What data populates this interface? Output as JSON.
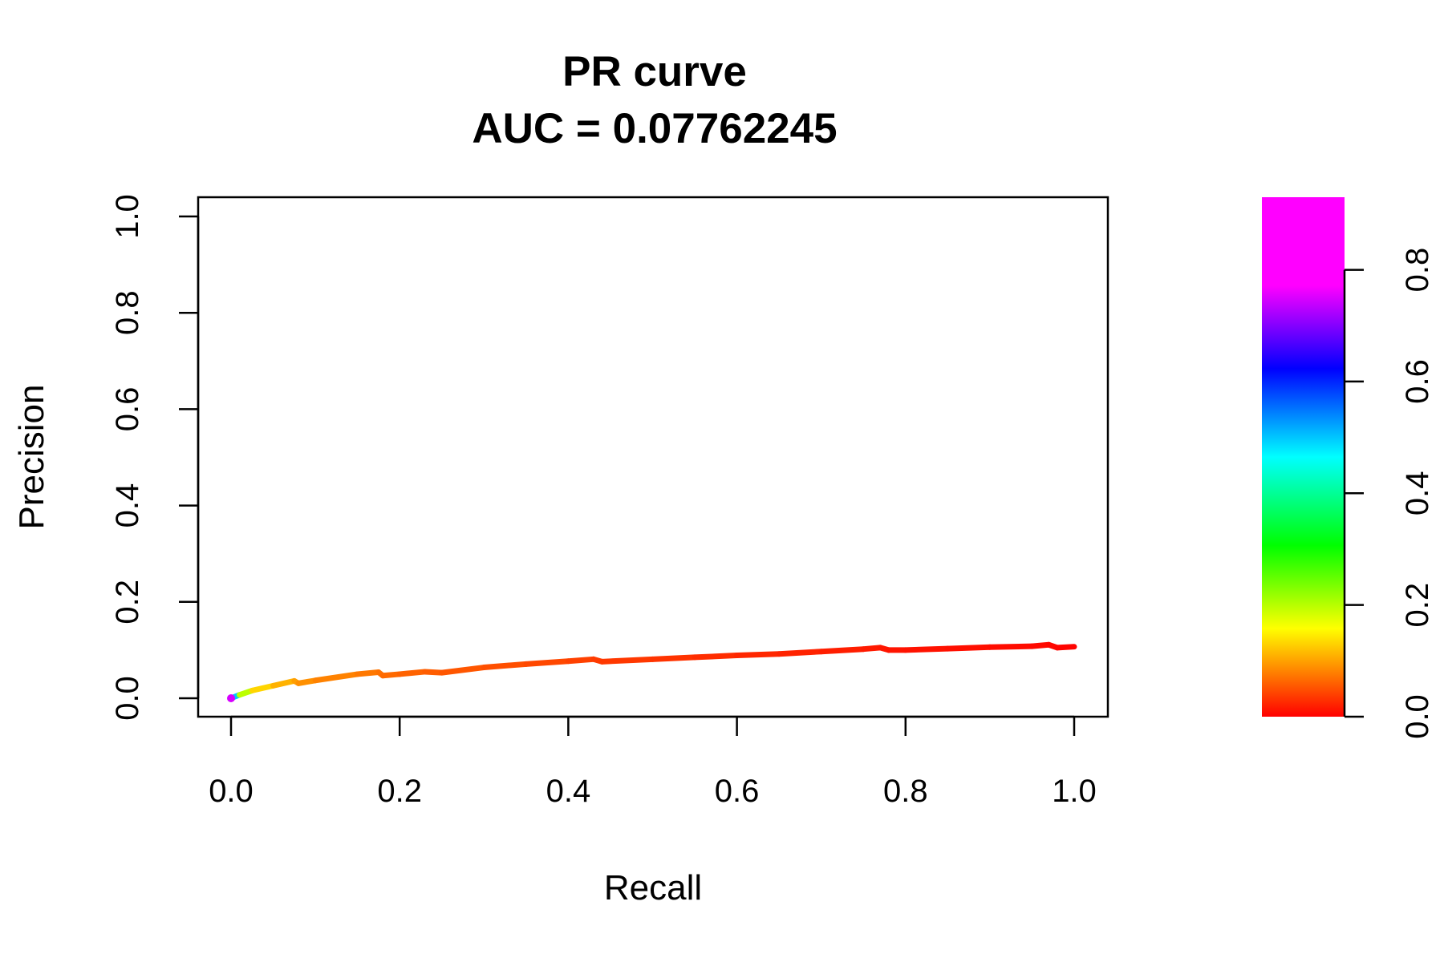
{
  "chart_data": {
    "type": "line",
    "title": "PR curve",
    "subtitle": "AUC = 0.07762245",
    "xlabel": "Recall",
    "ylabel": "Precision",
    "xlim": [
      0.0,
      1.0
    ],
    "ylim": [
      0.0,
      1.0
    ],
    "x_ticks": [
      "0.0",
      "0.2",
      "0.4",
      "0.6",
      "0.8",
      "1.0"
    ],
    "y_ticks": [
      "0.0",
      "0.2",
      "0.4",
      "0.6",
      "0.8",
      "1.0"
    ],
    "grid": false,
    "legend": "none",
    "curve": {
      "recall": [
        0.0,
        0.01,
        0.025,
        0.05,
        0.075,
        0.08,
        0.1,
        0.15,
        0.175,
        0.18,
        0.2,
        0.23,
        0.25,
        0.3,
        0.35,
        0.4,
        0.43,
        0.44,
        0.5,
        0.55,
        0.6,
        0.65,
        0.7,
        0.75,
        0.77,
        0.78,
        0.8,
        0.85,
        0.9,
        0.95,
        0.97,
        0.98,
        1.0
      ],
      "precision": [
        0.0,
        0.007,
        0.016,
        0.026,
        0.036,
        0.031,
        0.037,
        0.05,
        0.054,
        0.047,
        0.05,
        0.055,
        0.053,
        0.064,
        0.071,
        0.077,
        0.081,
        0.076,
        0.081,
        0.085,
        0.089,
        0.092,
        0.097,
        0.102,
        0.105,
        0.1,
        0.1,
        0.103,
        0.106,
        0.108,
        0.111,
        0.105,
        0.107
      ],
      "threshold": [
        0.9,
        0.3,
        0.17,
        0.14,
        0.12,
        0.11,
        0.1,
        0.09,
        0.085,
        0.08,
        0.075,
        0.07,
        0.065,
        0.06,
        0.055,
        0.05,
        0.045,
        0.042,
        0.04,
        0.035,
        0.03,
        0.027,
        0.024,
        0.02,
        0.018,
        0.016,
        0.014,
        0.012,
        0.01,
        0.008,
        0.006,
        0.004,
        0.002
      ]
    },
    "colorbar": {
      "range": [
        0.0,
        0.93
      ],
      "ticks": [
        "0.0",
        "0.2",
        "0.4",
        "0.6",
        "0.8"
      ],
      "palette": "rainbow (red → yellow → green → cyan → blue → magenta)"
    }
  }
}
